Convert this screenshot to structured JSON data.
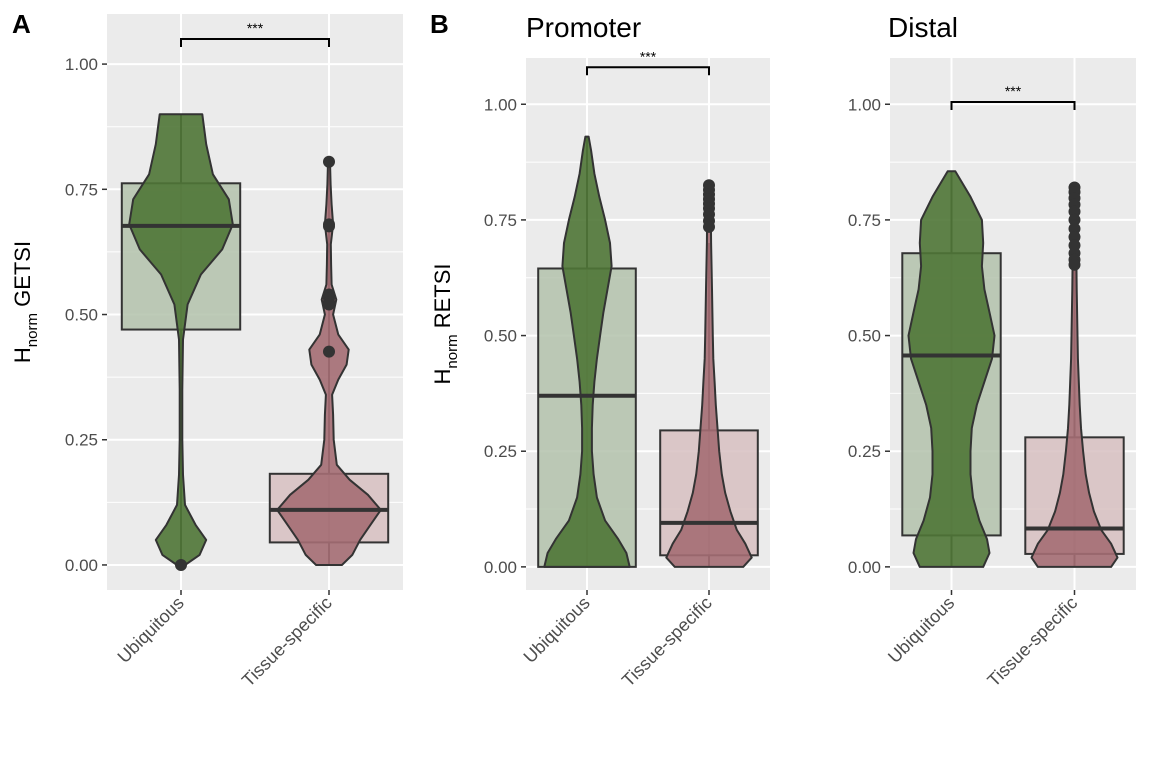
{
  "panel_letters": [
    "A",
    "B"
  ],
  "colors": {
    "ubiquitous": "#4f7536",
    "tissue_specific": "#a46d73",
    "box_ubiquitous": "#b3c2ac",
    "box_tissue_specific": "#d7bfc1",
    "panel_background": "#ebebeb",
    "gridline": "#ffffff",
    "outline": "#333333"
  },
  "chart_data": [
    {
      "type": "violin-box",
      "panel": "A",
      "title": "",
      "ylabel": "H",
      "ylabel_subscript": "norm",
      "ylabel_suffix": " GETSI",
      "ylim": [
        -0.05,
        1.1
      ],
      "yticks": [
        0,
        0.25,
        0.5,
        0.75,
        1.0
      ],
      "ytick_labels": [
        "0.00",
        "0.25",
        "0.50",
        "0.75",
        "1.00"
      ],
      "grid": true,
      "categories": [
        "Ubiquitous",
        "Tissue-specific"
      ],
      "significance": "***",
      "groups": [
        {
          "name": "Ubiquitous",
          "box": {
            "q1": 0.47,
            "median": 0.677,
            "q3": 0.762
          },
          "violin": {
            "y": [
              0,
              0.02,
              0.05,
              0.08,
              0.12,
              0.18,
              0.25,
              0.35,
              0.45,
              0.52,
              0.58,
              0.63,
              0.68,
              0.73,
              0.78,
              0.84,
              0.9
            ],
            "width": [
              0.06,
              0.28,
              0.38,
              0.22,
              0.06,
              0.03,
              0.02,
              0.02,
              0.03,
              0.1,
              0.3,
              0.62,
              0.78,
              0.72,
              0.48,
              0.38,
              0.32
            ]
          },
          "whisker": [
            0.0,
            0.9
          ],
          "outliers": [
            0.0
          ]
        },
        {
          "name": "Tissue-specific",
          "box": {
            "q1": 0.045,
            "median": 0.11,
            "q3": 0.182
          },
          "violin": {
            "y": [
              0,
              0.02,
              0.05,
              0.08,
              0.11,
              0.14,
              0.17,
              0.2,
              0.25,
              0.3,
              0.34,
              0.37,
              0.4,
              0.43,
              0.46,
              0.5,
              0.53,
              0.56,
              0.6,
              0.64,
              0.68,
              0.72,
              0.76,
              0.805
            ],
            "width": [
              0.25,
              0.45,
              0.6,
              0.8,
              1.0,
              0.75,
              0.4,
              0.15,
              0.09,
              0.08,
              0.06,
              0.18,
              0.34,
              0.38,
              0.18,
              0.08,
              0.14,
              0.05,
              0.04,
              0.035,
              0.08,
              0.05,
              0.03,
              0.02
            ]
          },
          "whisker": [
            0.0,
            0.805
          ],
          "outliers": [
            0.805,
            0.68,
            0.676,
            0.54,
            0.532,
            0.525,
            0.52,
            0.426
          ]
        }
      ]
    },
    {
      "type": "violin-box",
      "panel": "B",
      "title": "Promoter",
      "ylabel": "H",
      "ylabel_subscript": "norm",
      "ylabel_suffix": " RETSI",
      "ylim": [
        -0.05,
        1.1
      ],
      "yticks": [
        0,
        0.25,
        0.5,
        0.75,
        1.0
      ],
      "ytick_labels": [
        "0.00",
        "0.25",
        "0.50",
        "0.75",
        "1.00"
      ],
      "grid": true,
      "categories": [
        "Ubiquitous",
        "Tissue-specific"
      ],
      "significance": "***",
      "groups": [
        {
          "name": "Ubiquitous",
          "box": {
            "q1": 0.0,
            "median": 0.37,
            "q3": 0.645
          },
          "violin": {
            "y": [
              0,
              0.03,
              0.06,
              0.1,
              0.15,
              0.2,
              0.25,
              0.3,
              0.35,
              0.4,
              0.45,
              0.5,
              0.55,
              0.6,
              0.65,
              0.7,
              0.75,
              0.8,
              0.85,
              0.9,
              0.93
            ],
            "width": [
              0.52,
              0.48,
              0.38,
              0.22,
              0.12,
              0.08,
              0.06,
              0.06,
              0.07,
              0.09,
              0.12,
              0.16,
              0.2,
              0.25,
              0.3,
              0.28,
              0.22,
              0.15,
              0.09,
              0.05,
              0.02
            ]
          },
          "whisker": [
            0.0,
            0.93
          ],
          "outliers": []
        },
        {
          "name": "Tissue-specific",
          "box": {
            "q1": 0.025,
            "median": 0.095,
            "q3": 0.295
          },
          "violin": {
            "y": [
              0,
              0.02,
              0.05,
              0.08,
              0.12,
              0.16,
              0.2,
              0.25,
              0.3,
              0.35,
              0.4,
              0.45,
              0.5,
              0.6,
              0.7,
              0.8,
              0.83
            ],
            "width": [
              0.8,
              1.0,
              0.85,
              0.65,
              0.5,
              0.38,
              0.3,
              0.24,
              0.2,
              0.16,
              0.13,
              0.1,
              0.09,
              0.07,
              0.05,
              0.04,
              0.02
            ]
          },
          "whisker": [
            0.0,
            0.7
          ],
          "outliers": [
            0.825,
            0.815,
            0.805,
            0.795,
            0.785,
            0.775,
            0.762,
            0.748,
            0.735
          ]
        }
      ]
    },
    {
      "type": "violin-box",
      "panel": "B",
      "title": "Distal",
      "ylabel": "",
      "ylim": [
        -0.05,
        1.1
      ],
      "yticks": [
        0,
        0.25,
        0.5,
        0.75,
        1.0
      ],
      "ytick_labels": [
        "0.00",
        "0.25",
        "0.50",
        "0.75",
        "1.00"
      ],
      "grid": true,
      "categories": [
        "Ubiquitous",
        "Tissue-specific"
      ],
      "significance": "***",
      "groups": [
        {
          "name": "Ubiquitous",
          "box": {
            "q1": 0.068,
            "median": 0.457,
            "q3": 0.678
          },
          "violin": {
            "y": [
              0,
              0.03,
              0.06,
              0.1,
              0.15,
              0.2,
              0.25,
              0.3,
              0.35,
              0.4,
              0.45,
              0.5,
              0.55,
              0.6,
              0.65,
              0.7,
              0.75,
              0.8,
              0.855
            ],
            "width": [
              0.25,
              0.3,
              0.28,
              0.22,
              0.17,
              0.15,
              0.15,
              0.16,
              0.2,
              0.26,
              0.32,
              0.34,
              0.3,
              0.26,
              0.24,
              0.25,
              0.24,
              0.15,
              0.03
            ]
          },
          "whisker": [
            0.0,
            0.855
          ],
          "outliers": []
        },
        {
          "name": "Tissue-specific",
          "box": {
            "q1": 0.028,
            "median": 0.083,
            "q3": 0.28
          },
          "violin": {
            "y": [
              0,
              0.02,
              0.05,
              0.08,
              0.12,
              0.16,
              0.2,
              0.25,
              0.3,
              0.35,
              0.4,
              0.45,
              0.5,
              0.6,
              0.7,
              0.82
            ],
            "width": [
              0.85,
              1.0,
              0.85,
              0.62,
              0.45,
              0.34,
              0.26,
              0.2,
              0.15,
              0.12,
              0.1,
              0.08,
              0.07,
              0.05,
              0.04,
              0.02
            ]
          },
          "whisker": [
            0.0,
            0.65
          ],
          "outliers": [
            0.82,
            0.81,
            0.797,
            0.783,
            0.768,
            0.75,
            0.731,
            0.713,
            0.695,
            0.678,
            0.664,
            0.653
          ]
        }
      ]
    }
  ]
}
